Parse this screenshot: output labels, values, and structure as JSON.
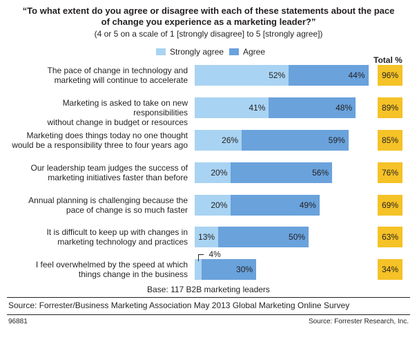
{
  "title_line1": "“To what extent do you agree or disagree with each of these statements about the pace",
  "title_line2": "of change you experience as a marketing leader?”",
  "subtitle": "(4 or 5 on a scale of 1 [strongly disagree] to 5 [strongly agree])",
  "legend": {
    "strongly_agree": "Strongly agree",
    "agree": "Agree"
  },
  "total_header": "Total %",
  "base_note": "Base: 117 B2B marketing leaders",
  "source": "Source: Forrester/Business Marketing Association May 2013 Global Marketing Online Survey",
  "footer_id": "96881",
  "footer_source": "Source: Forrester Research, Inc.",
  "colors": {
    "strongly_agree": "#a9d3f2",
    "agree": "#6aa2dc",
    "total": "#f5c227"
  },
  "chart_data": {
    "type": "bar",
    "orientation": "horizontal",
    "stacked": true,
    "categories": [
      [
        "The pace of change in technology and",
        "marketing will continue to accelerate"
      ],
      [
        "Marketing is asked to take on new responsibilities",
        "without change in budget or resources"
      ],
      [
        "Marketing does things today no one thought",
        "would be a responsibility three to four years ago"
      ],
      [
        "Our leadership team judges the success of",
        "marketing initiatives faster than before"
      ],
      [
        "Annual planning is challenging because the",
        "pace of change is so much faster"
      ],
      [
        "It is difficult to keep up with changes in",
        "marketing technology and practices"
      ],
      [
        "I feel overwhelmed by the speed at which",
        "things change in the business"
      ]
    ],
    "series": [
      {
        "name": "Strongly agree",
        "values": [
          52,
          41,
          26,
          20,
          20,
          13,
          4
        ],
        "labels": [
          "52%",
          "41%",
          "26%",
          "20%",
          "20%",
          "13%",
          "4%"
        ]
      },
      {
        "name": "Agree",
        "values": [
          44,
          48,
          59,
          56,
          49,
          50,
          30
        ],
        "labels": [
          "44%",
          "48%",
          "59%",
          "56%",
          "49%",
          "50%",
          "30%"
        ]
      }
    ],
    "totals": [
      96,
      89,
      85,
      76,
      69,
      63,
      34
    ],
    "total_labels": [
      "96%",
      "89%",
      "85%",
      "76%",
      "69%",
      "63%",
      "34%"
    ],
    "xlim": [
      0,
      100
    ],
    "grid": false,
    "legend_position": "top"
  }
}
